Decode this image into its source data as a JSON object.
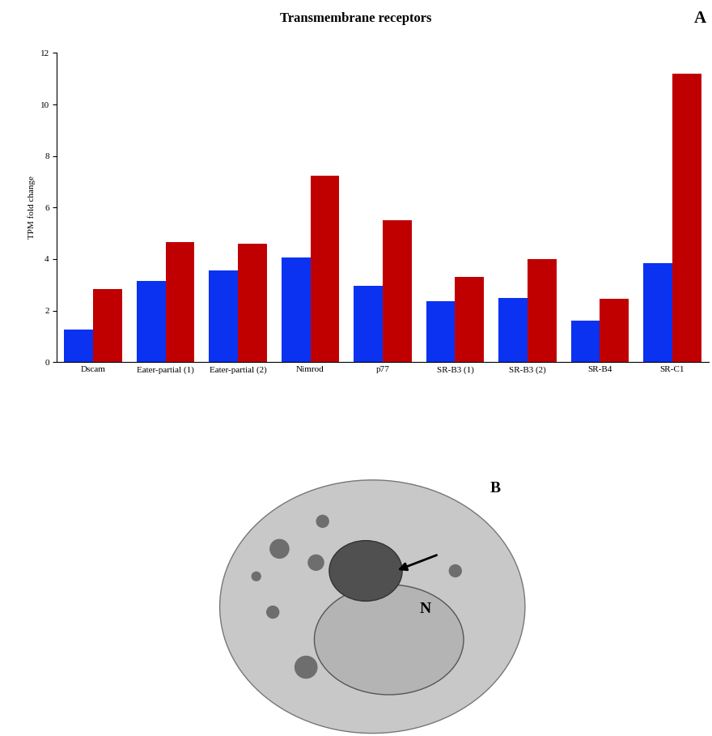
{
  "chart_data": {
    "type": "bar",
    "title": "Transmembrane receptors",
    "y_label": "TPM fold change",
    "categories": [
      "Dscam",
      "Eater-partial (1)",
      "Eater-partial (2)",
      "Nimrod",
      "p77",
      "SR-B3 (1)",
      "SR-B3 (2)",
      "SR-B4",
      "SR-C1"
    ],
    "series": [
      {
        "color": "#0a32f0",
        "values": [
          1.25,
          3.15,
          3.55,
          4.05,
          2.95,
          2.35,
          2.5,
          1.6,
          3.85
        ]
      },
      {
        "color": "#c00000",
        "values": [
          2.85,
          4.65,
          4.6,
          7.25,
          5.5,
          3.3,
          4.0,
          2.45,
          11.2
        ]
      }
    ],
    "ylim": [
      0,
      12
    ],
    "yticks": [
      0,
      2,
      4,
      6,
      8,
      10,
      12
    ],
    "grid": false
  },
  "panel_label": "A",
  "micrograph": {
    "labels": [
      "B",
      "N"
    ]
  }
}
